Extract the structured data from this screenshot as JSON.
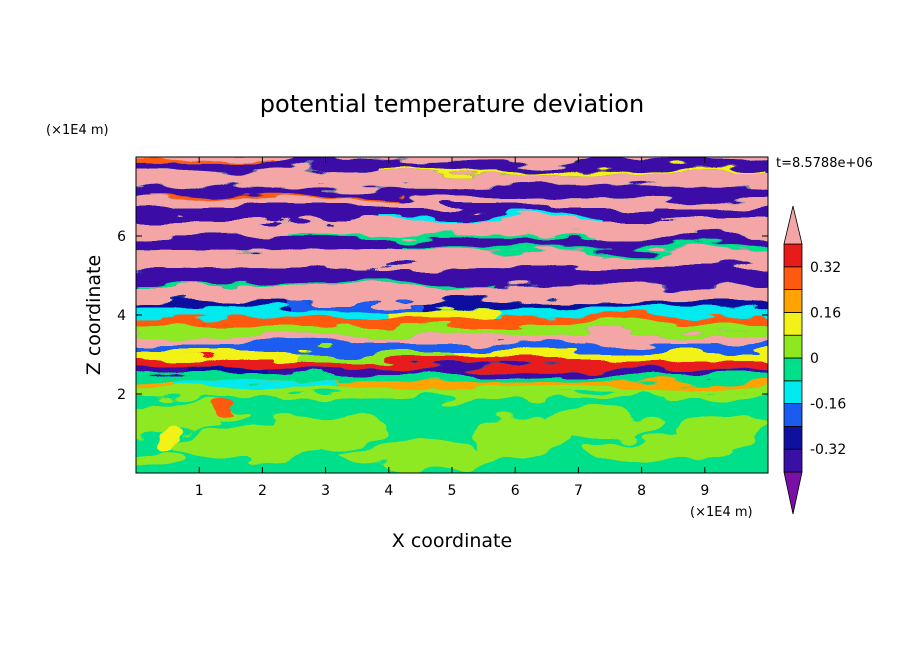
{
  "chart_data": {
    "type": "heatmap",
    "title": "potential temperature deviation",
    "xlabel": "X coordinate",
    "ylabel": "Z coordinate",
    "x_unit": "(×1E4 m)",
    "y_unit": "(×1E4 m)",
    "time_label": "t=8.5788e+06",
    "xlim": [
      0,
      10
    ],
    "ylim": [
      0,
      8
    ],
    "x_ticks": [
      1,
      2,
      3,
      4,
      5,
      6,
      7,
      8,
      9
    ],
    "y_ticks": [
      2,
      4,
      6
    ],
    "x_tick_labels": [
      "1",
      "2",
      "3",
      "4",
      "5",
      "6",
      "7",
      "8",
      "9"
    ],
    "y_tick_labels": [
      "2",
      "4",
      "6"
    ],
    "colorbar": {
      "levels": [
        -0.4,
        -0.32,
        -0.24,
        -0.16,
        -0.08,
        0,
        0.08,
        0.16,
        0.24,
        0.32,
        0.4
      ],
      "labeled_levels": [
        -0.32,
        -0.16,
        0,
        0.16,
        0.32
      ],
      "labels": [
        "-0.32",
        "-0.16",
        "0",
        "0.16",
        "0.32"
      ],
      "colors": [
        "#7a0fa6",
        "#3a0fa6",
        "#1010a0",
        "#1a5cf0",
        "#00eaf0",
        "#00e08a",
        "#8ee820",
        "#f2f218",
        "#ffa300",
        "#ff5a10",
        "#e81a1a",
        "#f4a6a6"
      ],
      "extend": "both"
    }
  }
}
